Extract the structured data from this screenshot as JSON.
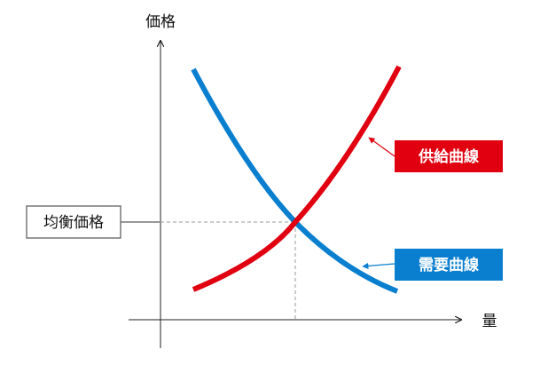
{
  "axes": {
    "y_label": "価格",
    "x_label": "量"
  },
  "labels": {
    "supply": "供給曲線",
    "demand": "需要曲線",
    "equilibrium": "均衡価格"
  }
}
